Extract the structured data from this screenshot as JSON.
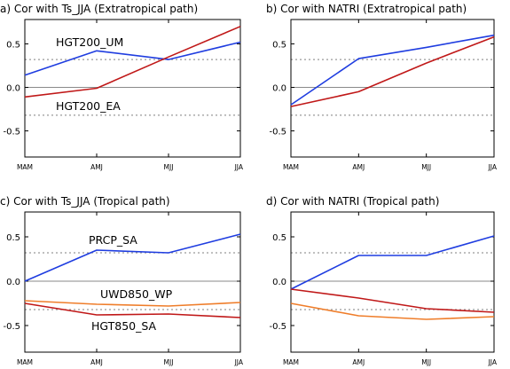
{
  "chart_data": [
    {
      "type": "line",
      "title": "a)  Cor with Ts_JJA (Extratropical path)",
      "categories": [
        "MAM",
        "AMJ",
        "MJJ",
        "JJA"
      ],
      "ylim": [
        -0.8,
        0.78
      ],
      "yticks": [
        "0.5",
        "0.0",
        "-0.5"
      ],
      "ytick_values": [
        0.5,
        0.0,
        -0.5
      ],
      "zero_line": true,
      "significance": [
        0.32,
        -0.32
      ],
      "series": [
        {
          "name": "HGT200_UM",
          "color": "#1f3de0",
          "values": [
            0.14,
            0.42,
            0.32,
            0.52
          ]
        },
        {
          "name": "HGT200_EA",
          "color": "#c01818",
          "values": [
            -0.11,
            -0.01,
            0.35,
            0.7
          ]
        }
      ]
    },
    {
      "type": "line",
      "title": "b)  Cor with NATRI (Extratropical path)",
      "categories": [
        "MAM",
        "AMJ",
        "MJJ",
        "JJA"
      ],
      "ylim": [
        -0.8,
        0.78
      ],
      "yticks": [
        "0.5",
        "0.0",
        "-0.5"
      ],
      "ytick_values": [
        0.5,
        0.0,
        -0.5
      ],
      "zero_line": true,
      "significance": [
        0.32,
        -0.32
      ],
      "series": [
        {
          "color": "#1f3de0",
          "values": [
            -0.2,
            0.33,
            0.46,
            0.6
          ]
        },
        {
          "color": "#c01818",
          "values": [
            -0.22,
            -0.05,
            0.28,
            0.58
          ]
        }
      ]
    },
    {
      "type": "line",
      "title": "c)  Cor with Ts_JJA (Tropical path)",
      "categories": [
        "MAM",
        "AMJ",
        "MJJ",
        "JJA"
      ],
      "ylim": [
        -0.8,
        0.78
      ],
      "yticks": [
        "0.5",
        "0.0",
        "-0.5"
      ],
      "ytick_values": [
        0.5,
        0.0,
        -0.5
      ],
      "zero_line": true,
      "significance": [
        0.32,
        -0.32
      ],
      "series": [
        {
          "name": "PRCP_SA",
          "color": "#1f3de0",
          "values": [
            0.0,
            0.35,
            0.32,
            0.53
          ]
        },
        {
          "name": "UWD850_WP",
          "color": "#ef7d2a",
          "values": [
            -0.22,
            -0.26,
            -0.28,
            -0.24
          ]
        },
        {
          "name": "HGT850_SA",
          "color": "#c01818",
          "values": [
            -0.25,
            -0.38,
            -0.37,
            -0.41
          ]
        }
      ]
    },
    {
      "type": "line",
      "title": "d)  Cor with NATRI (Tropical path)",
      "categories": [
        "MAM",
        "AMJ",
        "MJJ",
        "JJA"
      ],
      "ylim": [
        -0.8,
        0.78
      ],
      "yticks": [
        "0.5",
        "0.0",
        "-0.5"
      ],
      "ytick_values": [
        0.5,
        0.0,
        -0.5
      ],
      "zero_line": true,
      "significance": [
        0.32,
        -0.32
      ],
      "series": [
        {
          "color": "#1f3de0",
          "values": [
            -0.09,
            0.29,
            0.29,
            0.51
          ]
        },
        {
          "color": "#c01818",
          "values": [
            -0.09,
            -0.19,
            -0.31,
            -0.35
          ]
        },
        {
          "color": "#ef7d2a",
          "values": [
            -0.25,
            -0.39,
            -0.43,
            -0.4
          ]
        }
      ]
    }
  ]
}
